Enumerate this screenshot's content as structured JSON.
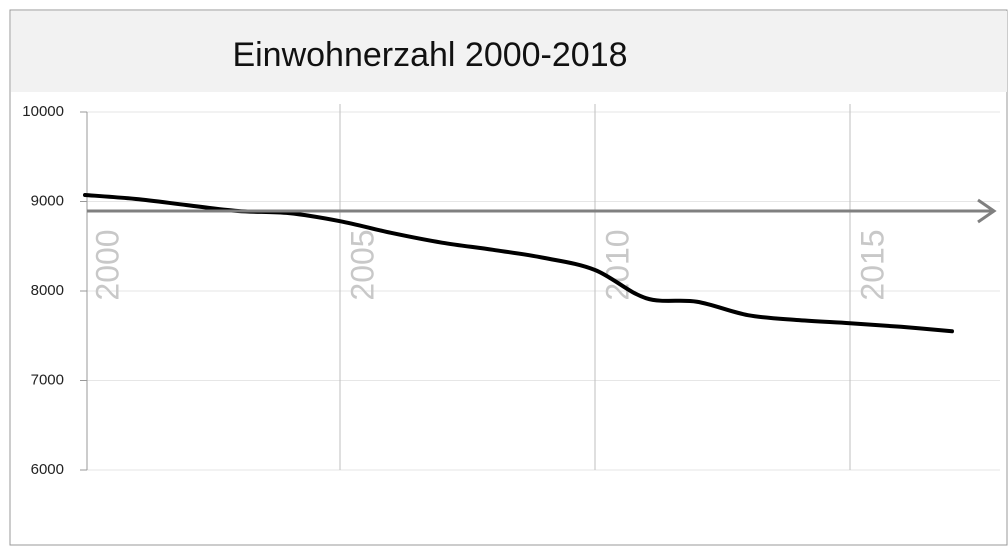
{
  "chart_data": {
    "type": "line",
    "title": "Einwohnerzahl 2000-2018",
    "x": [
      2000,
      2001,
      2002,
      2003,
      2004,
      2005,
      2006,
      2007,
      2008,
      2009,
      2010,
      2011,
      2012,
      2013,
      2014,
      2015,
      2016,
      2017
    ],
    "series": [
      {
        "color": "#000000",
        "values": [
          9073,
          9028,
          8960,
          8894,
          8870,
          8780,
          8650,
          8540,
          8460,
          8370,
          8235,
          7920,
          7880,
          7730,
          7675,
          7640,
          7600,
          7550
        ]
      }
    ],
    "xlim": [
      2000,
      2018
    ],
    "xticks": [
      2000,
      2005,
      2010,
      2015
    ],
    "ylim": [
      6000,
      10000
    ],
    "yticks": [
      6000,
      7000,
      8000,
      9000,
      10000
    ],
    "grid": true
  }
}
